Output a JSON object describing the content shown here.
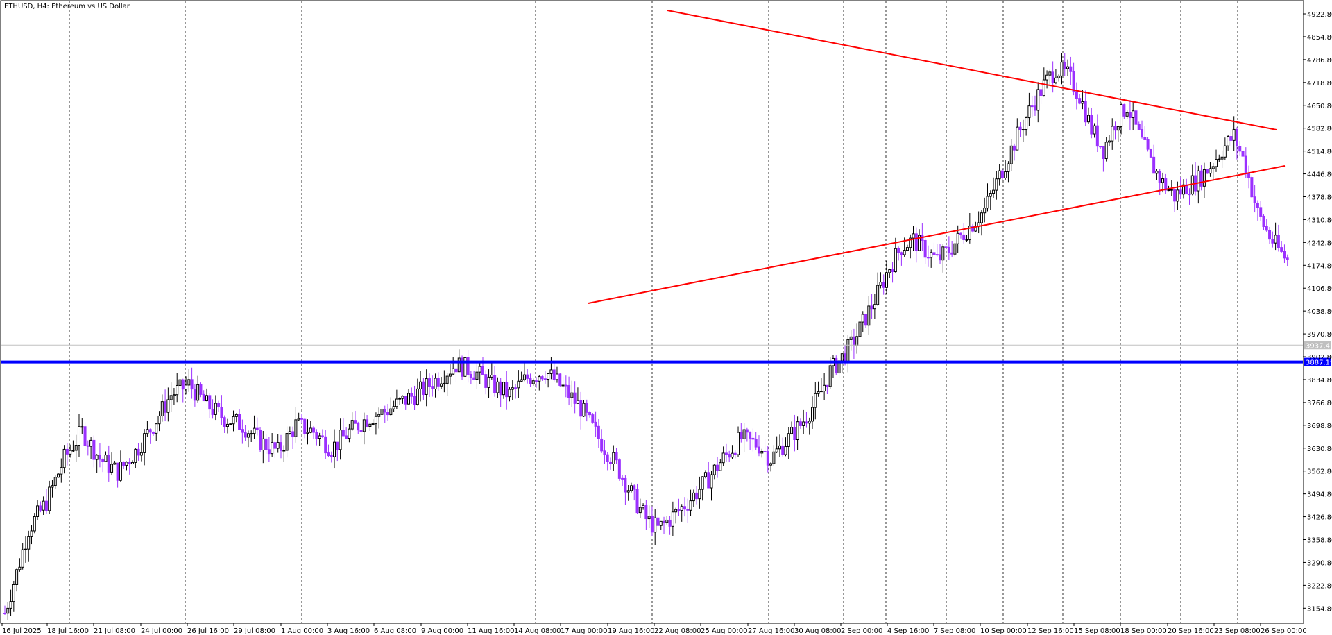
{
  "header": {
    "symbol_label": "ETHUSD, H4:  Ethereum vs US Dollar"
  },
  "colors": {
    "background": "#ffffff",
    "axis": "#000000",
    "grid": "#000000",
    "bull_candle": "#000000",
    "bear_candle": "#9b30ff",
    "trendline": "#ff0000",
    "support_line": "#0000ff",
    "bid_line": "#c0c0c0",
    "bid_tag": "#c0c0c0",
    "support_tag": "#0000ff"
  },
  "chart_data": {
    "type": "candlestick",
    "title": "ETHUSD, H4:  Ethereum vs US Dollar",
    "ylim": [
      3110,
      4960
    ],
    "y_ticks": [
      "4922.80",
      "4854.80",
      "4786.80",
      "4718.80",
      "4650.80",
      "4582.80",
      "4514.80",
      "4446.80",
      "4378.80",
      "4310.80",
      "4242.80",
      "4174.80",
      "4106.80",
      "4038.80",
      "3970.80",
      "3902.80",
      "3834.80",
      "3766.80",
      "3698.80",
      "3630.80",
      "3562.80",
      "3494.80",
      "3426.80",
      "3358.80",
      "3290.80",
      "3222.80",
      "3154.80"
    ],
    "x_ticks": [
      "16 Jul 2025",
      "18 Jul 16:00",
      "21 Jul 08:00",
      "24 Jul 00:00",
      "26 Jul 16:00",
      "29 Jul 08:00",
      "1 Aug 00:00",
      "3 Aug 16:00",
      "6 Aug 08:00",
      "9 Aug 00:00",
      "11 Aug 16:00",
      "14 Aug 08:00",
      "17 Aug 00:00",
      "19 Aug 16:00",
      "22 Aug 08:00",
      "25 Aug 00:00",
      "27 Aug 16:00",
      "30 Aug 08:00",
      "2 Sep 00:00",
      "4 Sep 16:00",
      "7 Sep 08:00",
      "10 Sep 00:00",
      "12 Sep 16:00",
      "15 Sep 08:00",
      "18 Sep 00:00",
      "20 Sep 16:00",
      "23 Sep 08:00",
      "26 Sep 00:00"
    ],
    "grid_ticks": [
      "18 Jul 16:00",
      "21 Jul 08:00",
      "26 Jul 16:00",
      "1 Aug 00:00",
      "6 Aug 08:00",
      "11 Aug 16:00",
      "17 Aug 00:00",
      "22 Aug 08:00",
      "27 Aug 16:00",
      "2 Sep 00:00",
      "7 Sep 08:00",
      "12 Sep 16:00",
      "18 Sep 00:00",
      "23 Sep 08:00",
      "26 Sep 00:00"
    ],
    "candles_count": 433,
    "close_path": [
      [
        0,
        3140
      ],
      [
        4,
        3260
      ],
      [
        8,
        3390
      ],
      [
        14,
        3470
      ],
      [
        20,
        3600
      ],
      [
        26,
        3680
      ],
      [
        32,
        3600
      ],
      [
        38,
        3560
      ],
      [
        44,
        3620
      ],
      [
        50,
        3700
      ],
      [
        56,
        3790
      ],
      [
        62,
        3820
      ],
      [
        68,
        3760
      ],
      [
        74,
        3720
      ],
      [
        80,
        3700
      ],
      [
        86,
        3650
      ],
      [
        92,
        3620
      ],
      [
        98,
        3700
      ],
      [
        104,
        3680
      ],
      [
        110,
        3630
      ],
      [
        116,
        3680
      ],
      [
        122,
        3720
      ],
      [
        128,
        3740
      ],
      [
        134,
        3770
      ],
      [
        140,
        3800
      ],
      [
        146,
        3840
      ],
      [
        152,
        3880
      ],
      [
        158,
        3860
      ],
      [
        164,
        3820
      ],
      [
        170,
        3790
      ],
      [
        176,
        3840
      ],
      [
        182,
        3860
      ],
      [
        188,
        3810
      ],
      [
        194,
        3750
      ],
      [
        200,
        3660
      ],
      [
        206,
        3580
      ],
      [
        212,
        3480
      ],
      [
        216,
        3420
      ],
      [
        220,
        3390
      ],
      [
        224,
        3420
      ],
      [
        230,
        3470
      ],
      [
        236,
        3530
      ],
      [
        242,
        3600
      ],
      [
        248,
        3660
      ],
      [
        254,
        3640
      ],
      [
        258,
        3600
      ],
      [
        262,
        3640
      ],
      [
        268,
        3700
      ],
      [
        274,
        3780
      ],
      [
        278,
        3860
      ],
      [
        282,
        3900
      ],
      [
        286,
        3950
      ],
      [
        290,
        4020
      ],
      [
        294,
        4090
      ],
      [
        298,
        4170
      ],
      [
        302,
        4230
      ],
      [
        306,
        4250
      ],
      [
        310,
        4220
      ],
      [
        314,
        4190
      ],
      [
        318,
        4220
      ],
      [
        322,
        4260
      ],
      [
        326,
        4300
      ],
      [
        330,
        4340
      ],
      [
        334,
        4420
      ],
      [
        338,
        4500
      ],
      [
        342,
        4580
      ],
      [
        346,
        4650
      ],
      [
        350,
        4710
      ],
      [
        354,
        4760
      ],
      [
        358,
        4740
      ],
      [
        362,
        4680
      ],
      [
        366,
        4580
      ],
      [
        370,
        4520
      ],
      [
        374,
        4600
      ],
      [
        378,
        4650
      ],
      [
        382,
        4560
      ],
      [
        386,
        4480
      ],
      [
        390,
        4420
      ],
      [
        394,
        4380
      ],
      [
        398,
        4410
      ],
      [
        402,
        4430
      ],
      [
        406,
        4470
      ],
      [
        410,
        4520
      ],
      [
        414,
        4560
      ],
      [
        418,
        4470
      ],
      [
        422,
        4330
      ],
      [
        426,
        4260
      ],
      [
        430,
        4210
      ],
      [
        433,
        4180
      ]
    ],
    "trendlines": [
      {
        "name": "upper",
        "from": [
          4870,
          4942
        ],
        "to": [
          4870,
          4600
        ]
      },
      {
        "name": "lower",
        "from": [
          4870,
          4070
        ],
        "to": [
          4870,
          4485
        ]
      }
    ],
    "levels": {
      "support_value": "3887.19",
      "bid_value": "3937.41"
    }
  }
}
